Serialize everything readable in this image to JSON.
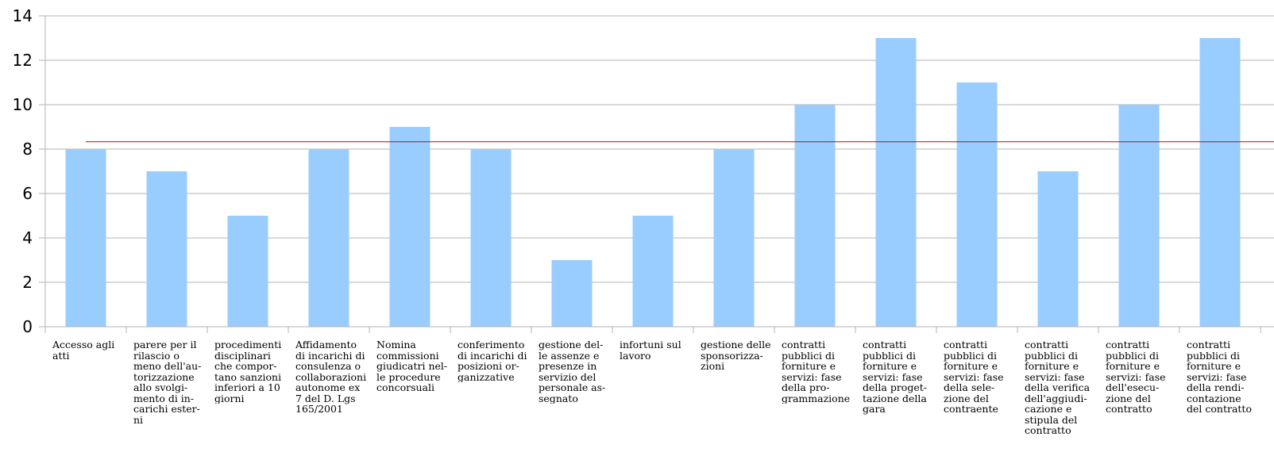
{
  "chart_data": {
    "type": "bar",
    "categories": [
      "Accesso agli\natti",
      "parere per il\nrilascio o\nmeno dell'au-\ntorizzazione\nallo svolgi-\nmento di in-\ncarichi ester-\nni",
      "procedimenti\ndisciplinari\nche compor-\ntano sanzioni\ninferiori a 10\ngiorni",
      "Affidamento\ndi incarichi di\nconsulenza o\ncollaborazioni\nautonome ex\n7 del D. Lgs\n165/2001",
      "Nomina\ncommissioni\ngiudicatri nel-\nle procedure\nconcorsuali",
      "conferimento\ndi incarichi di\nposizioni or-\nganizzative",
      " gestione del-\nle assenze e\npresenze in\nservizio del\npersonale as-\nsegnato",
      "infortuni sul\nlavoro",
      "gestione delle\nsponsorizza-\nzioni",
      "contratti\npubblici di\nforniture e\nservizi: fase\ndella pro-\ngrammazione",
      "contratti\npubblici di\nforniture e\nservizi: fase\ndella proget-\ntazione della\ngara",
      "contratti\npubblici di\nforniture e\nservizi: fase\ndella sele-\nzione del\ncontraente",
      "contratti\npubblici di\nforniture e\nservizi: fase\ndella verifica\ndell'aggiudi-\ncazione e\nstipula del\ncontratto",
      "contratti\npubblici di\nforniture e\nservizi: fase\ndell'esecu-\nzione del\ncontratto",
      "contratti\npubblici di\nforniture e\nservizi: fase\ndella rendi-\ncontazione\ndel contratto"
    ],
    "values": [
      8,
      7,
      5,
      8,
      9,
      8,
      3,
      5,
      8,
      10,
      13,
      11,
      7,
      10,
      13
    ],
    "reference_line": 8.33,
    "ylim": [
      0,
      14
    ],
    "yticks": [
      "0",
      "2",
      "4",
      "6",
      "8",
      "10",
      "12",
      "14"
    ],
    "grid": true,
    "colors": {
      "bar": "#99ccff",
      "reference_line": "#cc0000",
      "grid": "#b3b3b3",
      "axis": "#b3b3b3"
    }
  }
}
